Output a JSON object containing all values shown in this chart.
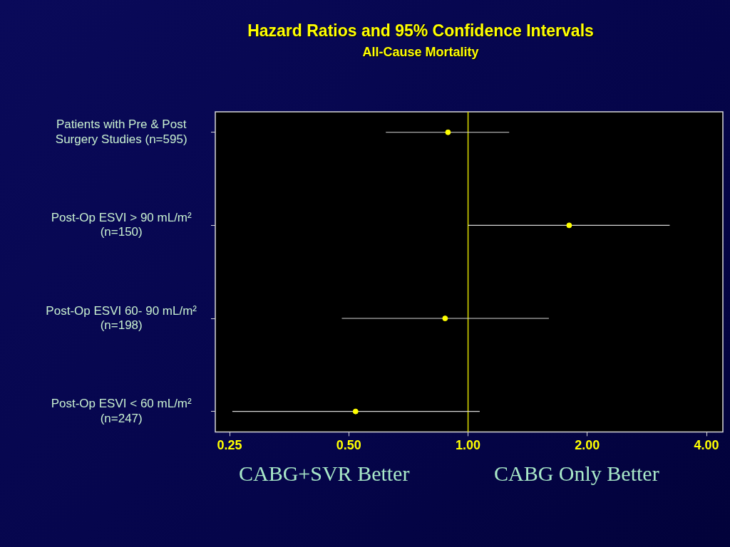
{
  "chart_data": {
    "type": "scatter",
    "orientation": "horizontal",
    "title": "Hazard Ratios and 95% Confidence Intervals",
    "subtitle": "All-Cause Mortality",
    "categories": [
      "Patients with Pre & Post Surgery Studies (n=595)",
      "Post-Op ESVI > 90 mL/m² (n=150)",
      "Post-Op ESVI 60- 90 mL/m² (n=198)",
      "Post-Op ESVI < 60 mL/m² (n=247)"
    ],
    "values": [
      0.89,
      1.8,
      0.875,
      0.52
    ],
    "errors": [
      [
        0.62,
        1.27
      ],
      [
        1.0,
        3.23
      ],
      [
        0.48,
        1.6
      ],
      [
        0.254,
        1.07
      ]
    ],
    "color": "#ffff00",
    "marker": "circle",
    "log": "x",
    "grid": false,
    "legend": false,
    "xlim": [
      0.23,
      4.4
    ],
    "xticks": [
      0.25,
      {
        "value": 0.5,
        "label": "0.50"
      },
      {
        "value": 1,
        "label": "1.00"
      },
      {
        "value": 2,
        "label": "2.00"
      },
      {
        "value": 4,
        "label": "4.00"
      }
    ],
    "ref_lines": [
      {
        "axis": "x",
        "value": 1,
        "color": "#e0e000"
      }
    ],
    "annotations": [
      "CABG+SVR Better",
      "CABG Only Better"
    ]
  }
}
